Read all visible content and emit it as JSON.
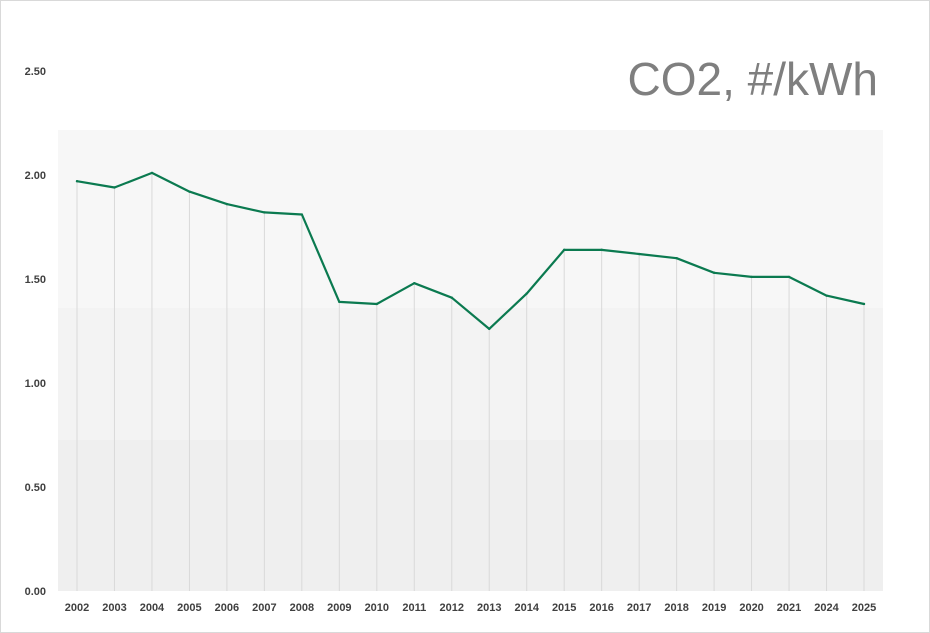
{
  "chart_data": {
    "type": "line",
    "title": "CO2, #/kWh",
    "xlabel": "",
    "ylabel": "",
    "ylim": [
      0,
      2.5
    ],
    "yticks": [
      0.0,
      0.5,
      1.0,
      1.5,
      2.0,
      2.5
    ],
    "ytick_labels": [
      "0.00",
      "0.50",
      "1.00",
      "1.50",
      "2.00",
      "2.50"
    ],
    "categories": [
      "2002",
      "2003",
      "2004",
      "2005",
      "2006",
      "2007",
      "2008",
      "2009",
      "2010",
      "2011",
      "2012",
      "2013",
      "2014",
      "2015",
      "2016",
      "2017",
      "2018",
      "2019",
      "2020",
      "2021",
      "2024",
      "2025"
    ],
    "series": [
      {
        "values": [
          1.97,
          1.94,
          2.01,
          1.92,
          1.86,
          1.82,
          1.81,
          1.39,
          1.38,
          1.48,
          1.41,
          1.26,
          1.43,
          1.64,
          1.64,
          1.62,
          1.6,
          1.53,
          1.51,
          1.51,
          1.42,
          1.38
        ],
        "color": "#0b7a50"
      }
    ],
    "grid": true,
    "legend": "none",
    "colors": {
      "line": "#0b7a50",
      "title": "#7f7f7f",
      "gridline": "#d9d9d9",
      "band_light": "#f7f7f7",
      "band_mid": "#f3f3f3",
      "band_dark": "#efefef"
    }
  }
}
